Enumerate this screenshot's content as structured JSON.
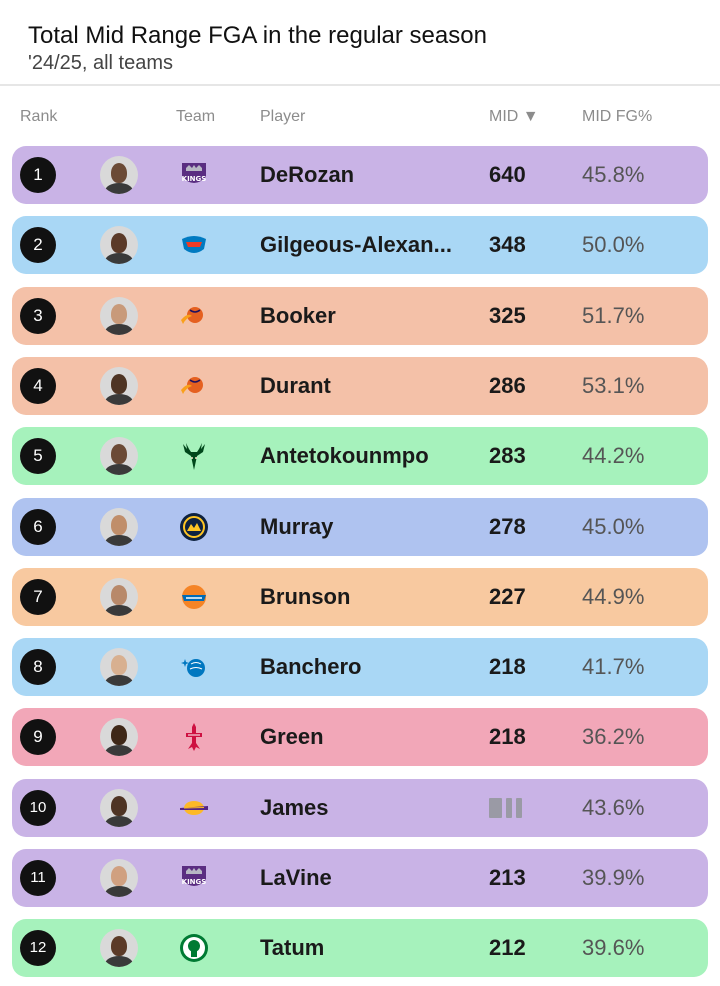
{
  "header": {
    "title": "Total Mid Range FGA in the regular season",
    "subtitle": "'24/25, all teams"
  },
  "columns": {
    "rank": "Rank",
    "team": "Team",
    "player": "Player",
    "mid": "MID ▼",
    "mid_fg": "MID FG%"
  },
  "chart_data": {
    "type": "table",
    "title": "Total Mid Range FGA in the regular season",
    "subtitle": "'24/25, all teams",
    "columns": [
      "Rank",
      "Team",
      "Player",
      "MID",
      "MID FG%"
    ],
    "rows": [
      {
        "rank": "1",
        "team_logo": "kings-logo-icon",
        "player": "DeRozan",
        "mid": "640",
        "mid_fg": "45.8%",
        "color": "#c9b3e6"
      },
      {
        "rank": "2",
        "team_logo": "thunder-logo-icon",
        "player": "Gilgeous-Alexan...",
        "mid": "348",
        "mid_fg": "50.0%",
        "color": "#a9d7f5"
      },
      {
        "rank": "3",
        "team_logo": "suns-logo-icon",
        "player": "Booker",
        "mid": "325",
        "mid_fg": "51.7%",
        "color": "#f4c1a8"
      },
      {
        "rank": "4",
        "team_logo": "suns-logo-icon",
        "player": "Durant",
        "mid": "286",
        "mid_fg": "53.1%",
        "color": "#f4c1a8"
      },
      {
        "rank": "5",
        "team_logo": "bucks-logo-icon",
        "player": "Antetokounmpo",
        "mid": "283",
        "mid_fg": "44.2%",
        "color": "#a6f2bc"
      },
      {
        "rank": "6",
        "team_logo": "nuggets-logo-icon",
        "player": "Murray",
        "mid": "278",
        "mid_fg": "45.0%",
        "color": "#afc3f0"
      },
      {
        "rank": "7",
        "team_logo": "knicks-logo-icon",
        "player": "Brunson",
        "mid": "227",
        "mid_fg": "44.9%",
        "color": "#f8c9a0"
      },
      {
        "rank": "8",
        "team_logo": "magic-logo-icon",
        "player": "Banchero",
        "mid": "218",
        "mid_fg": "41.7%",
        "color": "#a9d7f5"
      },
      {
        "rank": "9",
        "team_logo": "rockets-logo-icon",
        "player": "Green",
        "mid": "218",
        "mid_fg": "36.2%",
        "color": "#f2a7b8"
      },
      {
        "rank": "10",
        "team_logo": "lakers-logo-icon",
        "player": "James",
        "mid": "",
        "mid_fg": "43.6%",
        "color": "#c9b3e6",
        "mid_obscured": true
      },
      {
        "rank": "11",
        "team_logo": "kings-logo-icon",
        "player": "LaVine",
        "mid": "213",
        "mid_fg": "39.9%",
        "color": "#c9b3e6"
      },
      {
        "rank": "12",
        "team_logo": "celtics-logo-icon",
        "player": "Tatum",
        "mid": "212",
        "mid_fg": "39.6%",
        "color": "#a6f2bc"
      }
    ]
  },
  "logo_texts": {
    "kings": "KINGS"
  }
}
